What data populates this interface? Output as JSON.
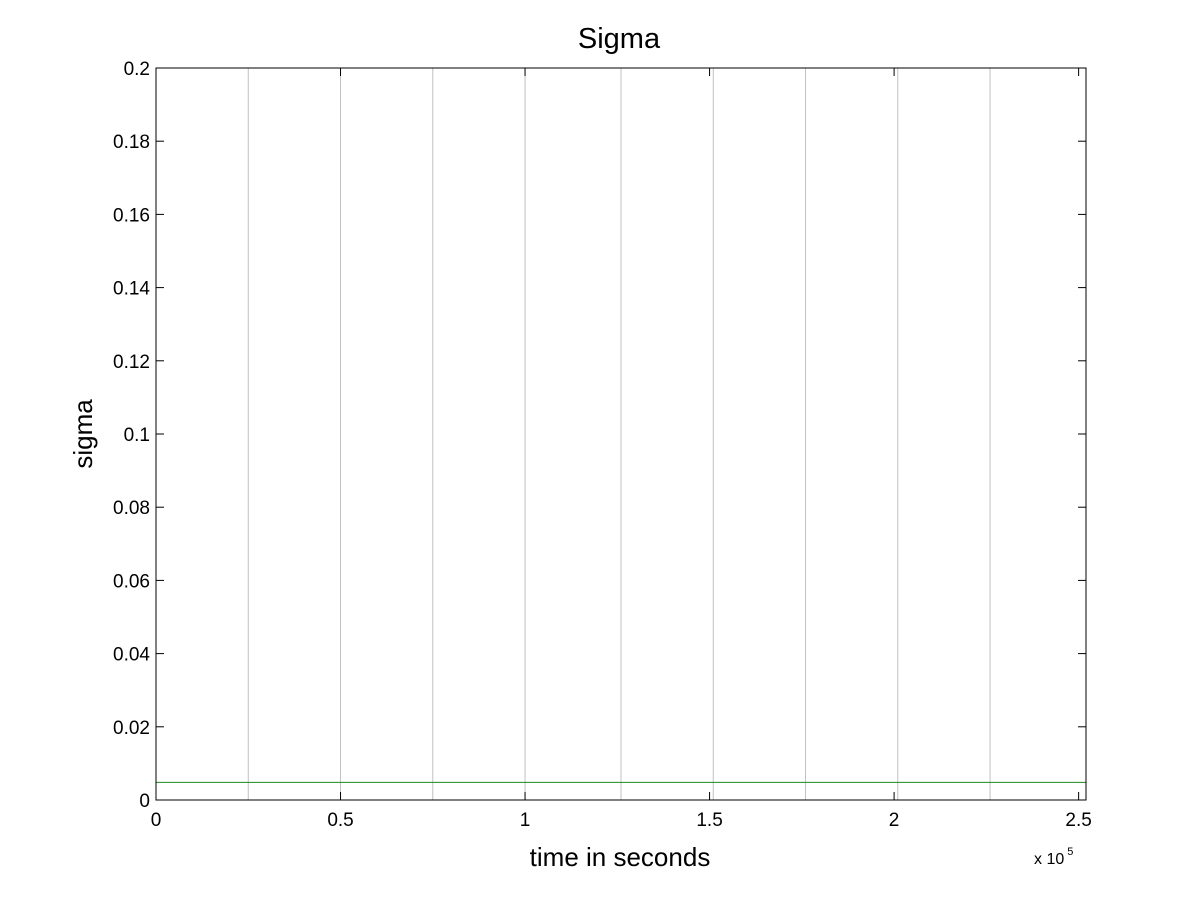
{
  "chart_data": {
    "type": "line",
    "title": "Sigma",
    "xlabel": "time in seconds",
    "ylabel": "sigma",
    "x_multiplier_base": "x 10",
    "x_multiplier_exponent": "5",
    "xlim": [
      0,
      2.52
    ],
    "ylim": [
      0,
      0.2
    ],
    "x_ticks": [
      0,
      0.5,
      1,
      1.5,
      2,
      2.5
    ],
    "x_tick_labels": [
      "0",
      "0.5",
      "1",
      "1.5",
      "2",
      "2.5"
    ],
    "y_ticks": [
      0,
      0.02,
      0.04,
      0.06,
      0.08,
      0.1,
      0.12,
      0.14,
      0.16,
      0.18,
      0.2
    ],
    "y_tick_labels": [
      "0",
      "0.02",
      "0.04",
      "0.06",
      "0.08",
      "0.1",
      "0.12",
      "0.14",
      "0.16",
      "0.18",
      "0.2"
    ],
    "vertical_reference_lines_x": [
      0.25,
      0.5,
      0.75,
      1.0,
      1.26,
      1.51,
      1.76,
      2.01,
      2.26
    ],
    "series": [
      {
        "x": [
          0,
          2.52
        ],
        "y": [
          0.0048,
          0.0048
        ],
        "color": "#1a8a1a"
      }
    ],
    "grid": false,
    "legend": "none"
  }
}
